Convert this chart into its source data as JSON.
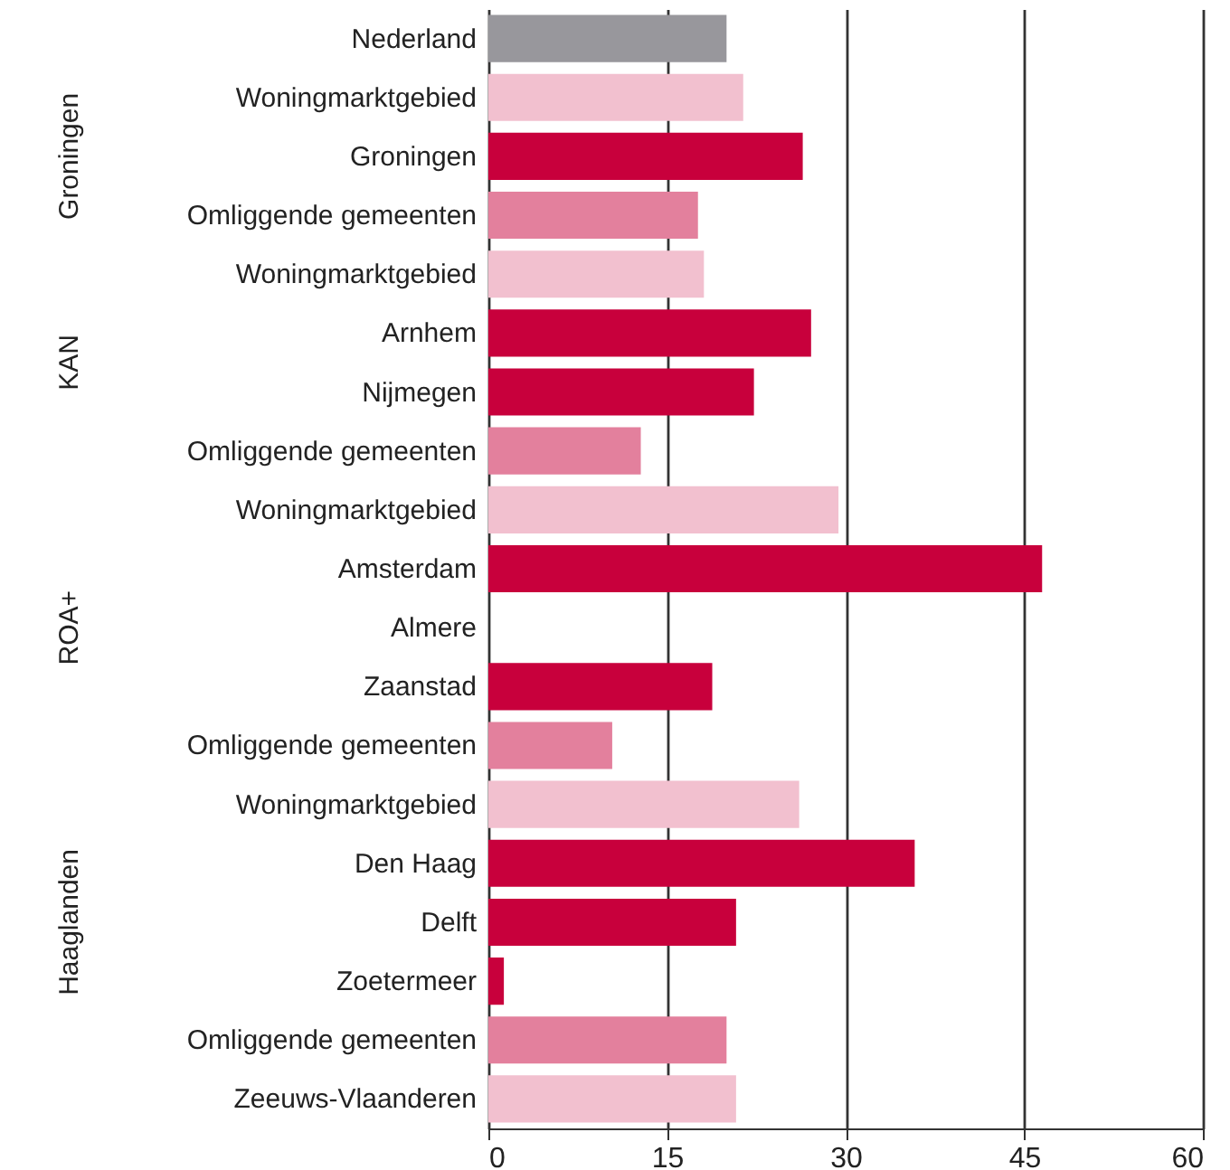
{
  "chart_data": {
    "type": "bar",
    "orientation": "horizontal",
    "categories": [
      "Nederland",
      "Woningmarktgebied",
      "Groningen",
      "Omliggende gemeenten",
      "Woningmarktgebied",
      "Arnhem",
      "Nijmegen",
      "Omliggende gemeenten",
      "Woningmarktgebied",
      "Amsterdam",
      "Almere",
      "Zaanstad",
      "Omliggende gemeenten",
      "Woningmarktgebied",
      "Den Haag",
      "Delft",
      "Zoetermeer",
      "Omliggende gemeenten",
      "Zeeuws-Vlaanderen"
    ],
    "values": [
      20.0,
      21.4,
      26.4,
      17.6,
      18.1,
      27.1,
      22.3,
      12.8,
      29.4,
      46.5,
      null,
      18.8,
      10.4,
      26.1,
      35.8,
      20.8,
      1.3,
      20.0,
      20.8
    ],
    "colors": [
      "#98979c",
      "#f2c0cf",
      "#c8003c",
      "#e3809d",
      "#f2c0cf",
      "#c8003c",
      "#c8003c",
      "#e3809d",
      "#f2c0cf",
      "#c8003c",
      "#c8003c",
      "#c8003c",
      "#e3809d",
      "#f2c0cf",
      "#c8003c",
      "#c8003c",
      "#c8003c",
      "#e3809d",
      "#f2c0cf"
    ],
    "xlim": [
      0,
      60
    ],
    "xticks": [
      0,
      15,
      30,
      45,
      60
    ],
    "grid": "x",
    "annotations": [
      "Groningen",
      "KAN",
      "ROA+",
      "Haaglanden"
    ]
  }
}
